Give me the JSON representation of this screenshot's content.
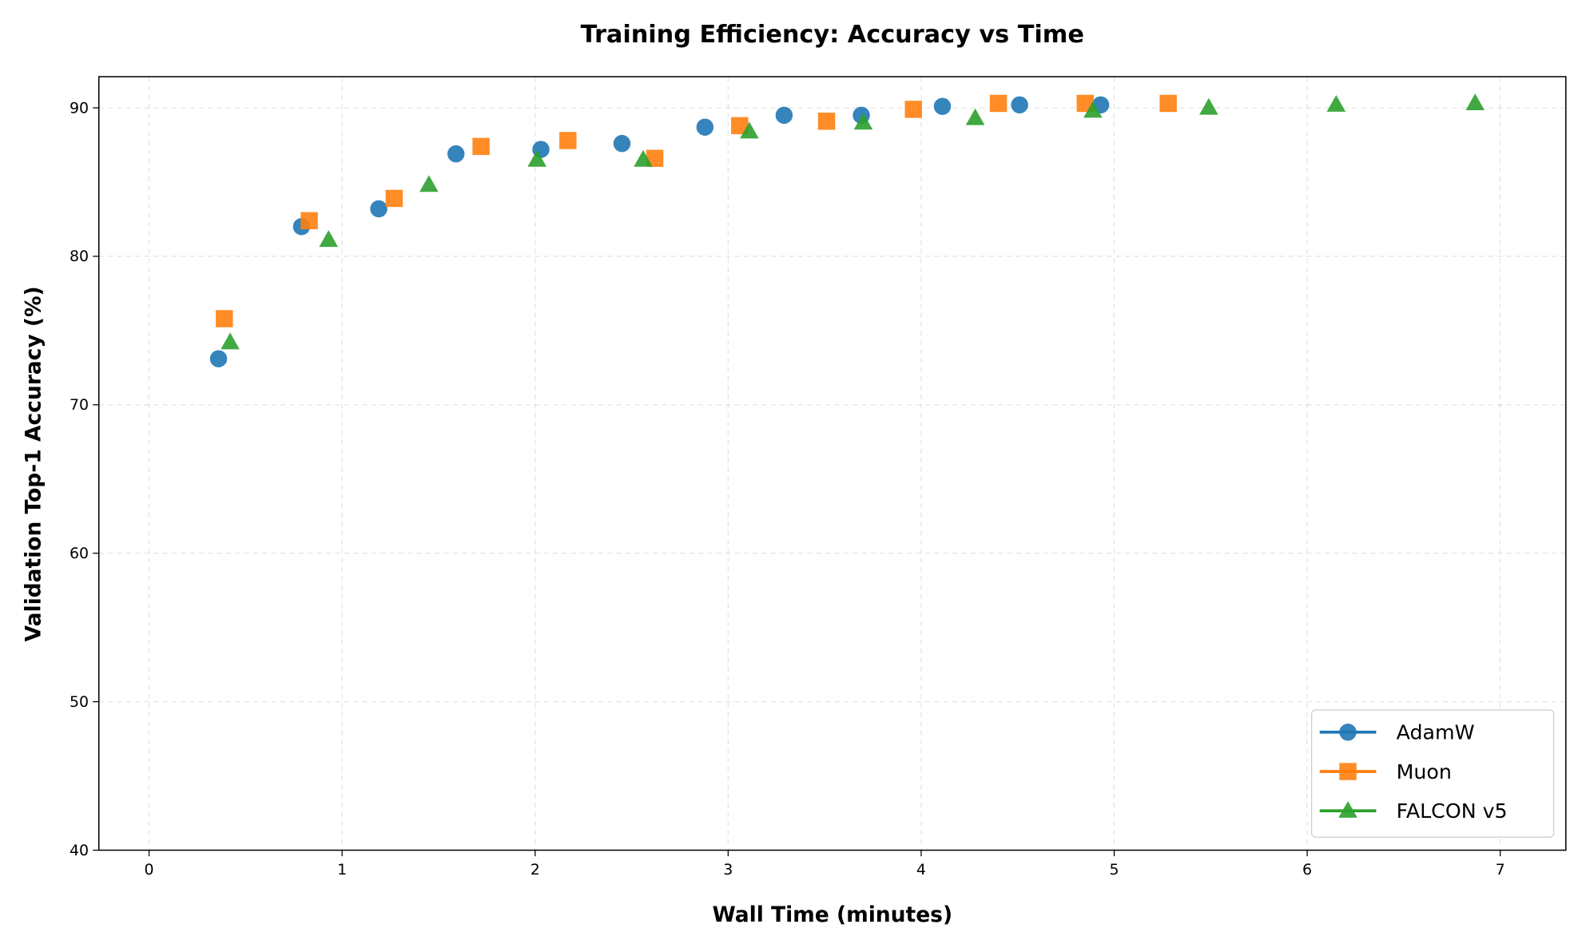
{
  "chart_data": {
    "type": "scatter",
    "title": "Training Efficiency: Accuracy vs Time",
    "xlabel": "Wall Time (minutes)",
    "ylabel": "Validation Top-1 Accuracy (%)",
    "xlim": [
      -0.26,
      7.34
    ],
    "ylim": [
      40,
      92.1
    ],
    "xticks": [
      0,
      1,
      2,
      3,
      4,
      5,
      6,
      7
    ],
    "yticks": [
      40,
      50,
      60,
      70,
      80,
      90
    ],
    "grid": true,
    "legend_position": "bottom-right",
    "series": [
      {
        "name": "AdamW",
        "marker": "circle",
        "color": "#1f77b4",
        "x": [
          0.36,
          0.79,
          1.19,
          1.59,
          2.03,
          2.45,
          2.88,
          3.29,
          3.69,
          4.11,
          4.51,
          4.93
        ],
        "y": [
          73.1,
          82.0,
          83.2,
          86.9,
          87.2,
          87.6,
          88.7,
          89.5,
          89.5,
          90.1,
          90.2,
          90.2
        ]
      },
      {
        "name": "Muon",
        "marker": "square",
        "color": "#ff7f0e",
        "x": [
          0.39,
          0.83,
          1.27,
          1.72,
          2.17,
          2.62,
          3.06,
          3.51,
          3.96,
          4.4,
          4.85,
          5.28
        ],
        "y": [
          75.8,
          82.4,
          83.9,
          87.4,
          87.8,
          86.6,
          88.8,
          89.1,
          89.9,
          90.3,
          90.3,
          90.3
        ]
      },
      {
        "name": "FALCON v5",
        "marker": "triangle",
        "color": "#2ca02c",
        "x": [
          0.42,
          0.93,
          1.45,
          2.01,
          2.56,
          3.11,
          3.7,
          4.28,
          4.89,
          5.49,
          6.15,
          6.87
        ],
        "y": [
          74.2,
          81.1,
          84.8,
          86.5,
          86.5,
          88.4,
          89.0,
          89.3,
          89.8,
          90.0,
          90.2,
          90.3
        ]
      }
    ]
  }
}
